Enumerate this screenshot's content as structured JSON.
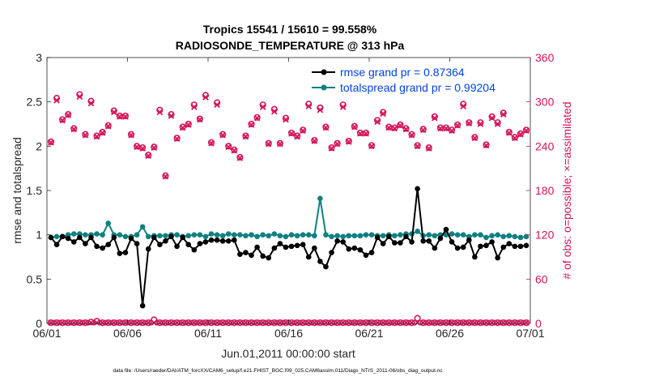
{
  "chart_data": {
    "type": "line",
    "title_line1": "Tropics 15541 / 15610 = 99.558%",
    "title_line2": "RADIOSONDE_TEMPERATURE @ 313 hPa",
    "xlabel": "Jun.01,2011 00:00:00 start",
    "ylabel_left": "rmse and totalspread",
    "ylabel_right": "# of obs: o=possible; ×=assimilated",
    "footnote": "data file: /Users/raeder/DAI/ATM_forcXX/CAM6_setup/f.e21.FHIST_BGC.f09_025.CAM6assim.011/Diags_NTrS_2011-06/obs_diag_output.nc",
    "xlim": [
      0,
      30
    ],
    "ylim_left": [
      0,
      3
    ],
    "ylim_right": [
      0,
      360
    ],
    "x_ticks": [
      {
        "pos": 0,
        "label": "06/01"
      },
      {
        "pos": 5,
        "label": "06/06"
      },
      {
        "pos": 10,
        "label": "06/11"
      },
      {
        "pos": 15,
        "label": "06/16"
      },
      {
        "pos": 20,
        "label": "06/21"
      },
      {
        "pos": 25,
        "label": "06/26"
      },
      {
        "pos": 30,
        "label": "07/01"
      }
    ],
    "y_left_ticks": [
      {
        "v": 0,
        "label": "0"
      },
      {
        "v": 0.5,
        "label": "0.5"
      },
      {
        "v": 1,
        "label": "1"
      },
      {
        "v": 1.5,
        "label": "1.5"
      },
      {
        "v": 2,
        "label": "2"
      },
      {
        "v": 2.5,
        "label": "2.5"
      },
      {
        "v": 3,
        "label": "3"
      }
    ],
    "y_right_ticks": [
      {
        "v": 0,
        "label": "0"
      },
      {
        "v": 60,
        "label": "60"
      },
      {
        "v": 120,
        "label": "120"
      },
      {
        "v": 180,
        "label": "180"
      },
      {
        "v": 240,
        "label": "240"
      },
      {
        "v": 300,
        "label": "300"
      },
      {
        "v": 360,
        "label": "360"
      }
    ],
    "colors": {
      "rmse": "#000000",
      "spread": "#0f8080",
      "obs": "#d4145a",
      "legend_text": "#0044dd"
    },
    "legend": [
      {
        "name": "rmse grand pr = 0.87364",
        "key": "rmse"
      },
      {
        "name": "totalspread grand pr = 0.99204",
        "key": "spread"
      }
    ],
    "series": [
      {
        "name": "rmse",
        "axis": "left",
        "values": [
          0.97,
          0.89,
          0.98,
          0.96,
          0.92,
          0.97,
          0.9,
          0.97,
          0.87,
          0.85,
          0.89,
          0.97,
          0.79,
          0.8,
          0.96,
          0.9,
          0.2,
          0.84,
          0.97,
          0.89,
          0.93,
          0.98,
          0.87,
          0.97,
          0.89,
          0.83,
          0.9,
          0.92,
          0.94,
          0.94,
          0.93,
          0.93,
          0.94,
          0.78,
          0.8,
          0.77,
          0.86,
          0.76,
          0.74,
          0.85,
          0.9,
          0.86,
          0.87,
          0.88,
          0.89,
          0.75,
          0.85,
          0.7,
          0.64,
          0.8,
          0.93,
          0.92,
          0.84,
          0.85,
          0.83,
          0.77,
          0.8,
          0.97,
          0.9,
          0.98,
          0.91,
          0.91,
          0.98,
          0.92,
          1.52,
          0.93,
          0.93,
          0.85,
          0.96,
          1.06,
          0.92,
          0.85,
          0.86,
          0.94,
          0.75,
          0.87,
          0.88,
          0.92,
          0.74,
          0.86,
          0.9,
          0.87,
          0.87,
          0.88
        ]
      },
      {
        "name": "totalspread",
        "axis": "left",
        "values": [
          0.97,
          0.98,
          0.98,
          1.0,
          1.01,
          1.01,
          1.0,
          1.0,
          1.01,
          1.0,
          1.13,
          1.0,
          1.0,
          0.98,
          0.98,
          1.0,
          1.09,
          0.98,
          0.99,
          0.99,
          0.99,
          1.0,
          1.0,
          0.98,
          0.99,
          1.0,
          1.0,
          0.98,
          1.01,
          1.0,
          0.99,
          1.01,
          1.0,
          1.0,
          0.99,
          1.0,
          0.98,
          1.0,
          0.99,
          1.01,
          0.99,
          0.98,
          1.0,
          0.99,
          1.0,
          1.0,
          0.99,
          1.41,
          1.0,
          0.98,
          0.99,
          0.98,
          0.99,
          0.99,
          0.99,
          1.0,
          1.0,
          0.99,
          0.99,
          1.0,
          0.99,
          1.0,
          1.01,
          1.01,
          1.04,
          0.99,
          1.0,
          0.99,
          1.0,
          1.0,
          1.01,
          1.0,
          1.0,
          0.98,
          1.0,
          1.0,
          0.97,
          0.99,
          1.0,
          0.98,
          0.99,
          0.98,
          0.97,
          0.98
        ]
      },
      {
        "name": "# possible",
        "axis": "right",
        "values": [
          246,
          305,
          276,
          283,
          264,
          310,
          256,
          301,
          254,
          259,
          268,
          288,
          281,
          281,
          256,
          240,
          238,
          228,
          239,
          289,
          200,
          283,
          251,
          266,
          270,
          296,
          277,
          309,
          245,
          299,
          256,
          240,
          235,
          225,
          254,
          270,
          279,
          296,
          244,
          290,
          244,
          278,
          258,
          254,
          262,
          297,
          248,
          292,
          266,
          238,
          244,
          296,
          247,
          267,
          258,
          258,
          241,
          275,
          286,
          266,
          265,
          269,
          264,
          256,
          241,
          263,
          238,
          280,
          265,
          265,
          262,
          269,
          297,
          272,
          252,
          272,
          242,
          280,
          272,
          285,
          259,
          252,
          257,
          262
        ]
      },
      {
        "name": "# assimilated",
        "axis": "right",
        "values": [
          245,
          302,
          275,
          282,
          263,
          307,
          255,
          298,
          253,
          258,
          267,
          286,
          280,
          280,
          255,
          239,
          237,
          227,
          238,
          286,
          199,
          281,
          250,
          265,
          269,
          293,
          276,
          306,
          244,
          296,
          255,
          239,
          234,
          224,
          253,
          269,
          278,
          293,
          243,
          287,
          243,
          276,
          257,
          253,
          261,
          294,
          247,
          289,
          265,
          237,
          243,
          293,
          246,
          266,
          257,
          257,
          240,
          273,
          284,
          265,
          264,
          268,
          263,
          255,
          240,
          262,
          237,
          278,
          264,
          264,
          261,
          268,
          294,
          271,
          251,
          270,
          241,
          278,
          270,
          283,
          258,
          251,
          256,
          261
        ]
      },
      {
        "name": "# possible (bottom)",
        "axis": "right",
        "values": [
          1,
          1,
          1,
          1,
          1,
          1,
          1,
          2,
          3,
          1,
          1,
          1,
          1,
          1,
          1,
          1,
          1,
          1,
          5,
          1,
          1,
          1,
          1,
          1,
          1,
          1,
          1,
          1,
          1,
          1,
          1,
          1,
          1,
          1,
          1,
          1,
          1,
          1,
          1,
          1,
          1,
          1,
          1,
          1,
          1,
          1,
          1,
          1,
          1,
          1,
          1,
          1,
          1,
          1,
          1,
          1,
          1,
          1,
          1,
          1,
          1,
          1,
          1,
          1,
          7,
          1,
          1,
          1,
          1,
          1,
          1,
          1,
          1,
          1,
          1,
          1,
          1,
          1,
          1,
          1,
          1,
          1,
          1,
          1
        ]
      },
      {
        "name": "# assimilated (bottom)",
        "axis": "right",
        "values": [
          1,
          1,
          1,
          1,
          1,
          1,
          1,
          1,
          1,
          1,
          1,
          1,
          1,
          1,
          1,
          1,
          1,
          1,
          1,
          1,
          1,
          1,
          1,
          1,
          1,
          1,
          1,
          1,
          1,
          1,
          1,
          1,
          1,
          1,
          1,
          1,
          1,
          1,
          1,
          1,
          1,
          1,
          1,
          1,
          1,
          1,
          1,
          1,
          1,
          1,
          1,
          1,
          1,
          1,
          1,
          1,
          1,
          1,
          1,
          1,
          1,
          1,
          1,
          1,
          1,
          1,
          1,
          1,
          1,
          1,
          1,
          1,
          1,
          1,
          1,
          1,
          1,
          1,
          1,
          1,
          1,
          1,
          1,
          1
        ]
      }
    ],
    "grid": false
  }
}
